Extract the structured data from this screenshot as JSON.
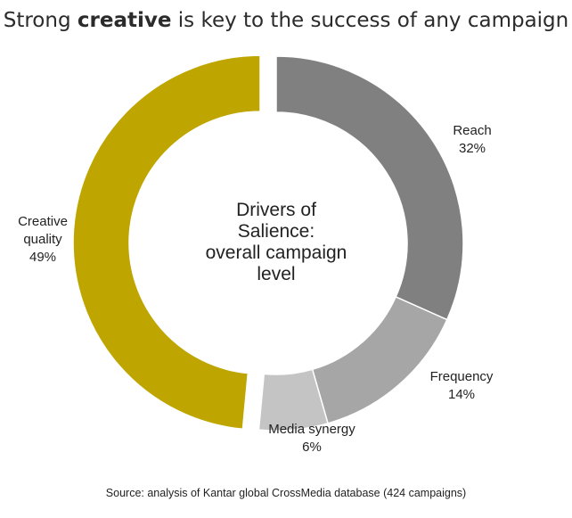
{
  "title": {
    "prefix": "Strong",
    "bold": "creative",
    "suffix": "is key to the success of any campaign"
  },
  "chart_data": {
    "type": "pie",
    "style": "donut",
    "center_text": [
      "Drivers of",
      "Salience:",
      "overall campaign",
      "level"
    ],
    "slices": [
      {
        "name": "Reach",
        "value": 32,
        "label": "32%",
        "color": "#808080"
      },
      {
        "name": "Frequency",
        "value": 14,
        "label": "14%",
        "color": "#a6a6a6"
      },
      {
        "name": "Media synergy",
        "value": 6,
        "label": "6%",
        "color": "#c4c4c4"
      },
      {
        "name": "Creative quality",
        "value": 49,
        "label": "49%",
        "color": "#bfa500",
        "exploded": true
      }
    ]
  },
  "source": "Source: analysis of Kantar global CrossMedia database (424 campaigns)"
}
